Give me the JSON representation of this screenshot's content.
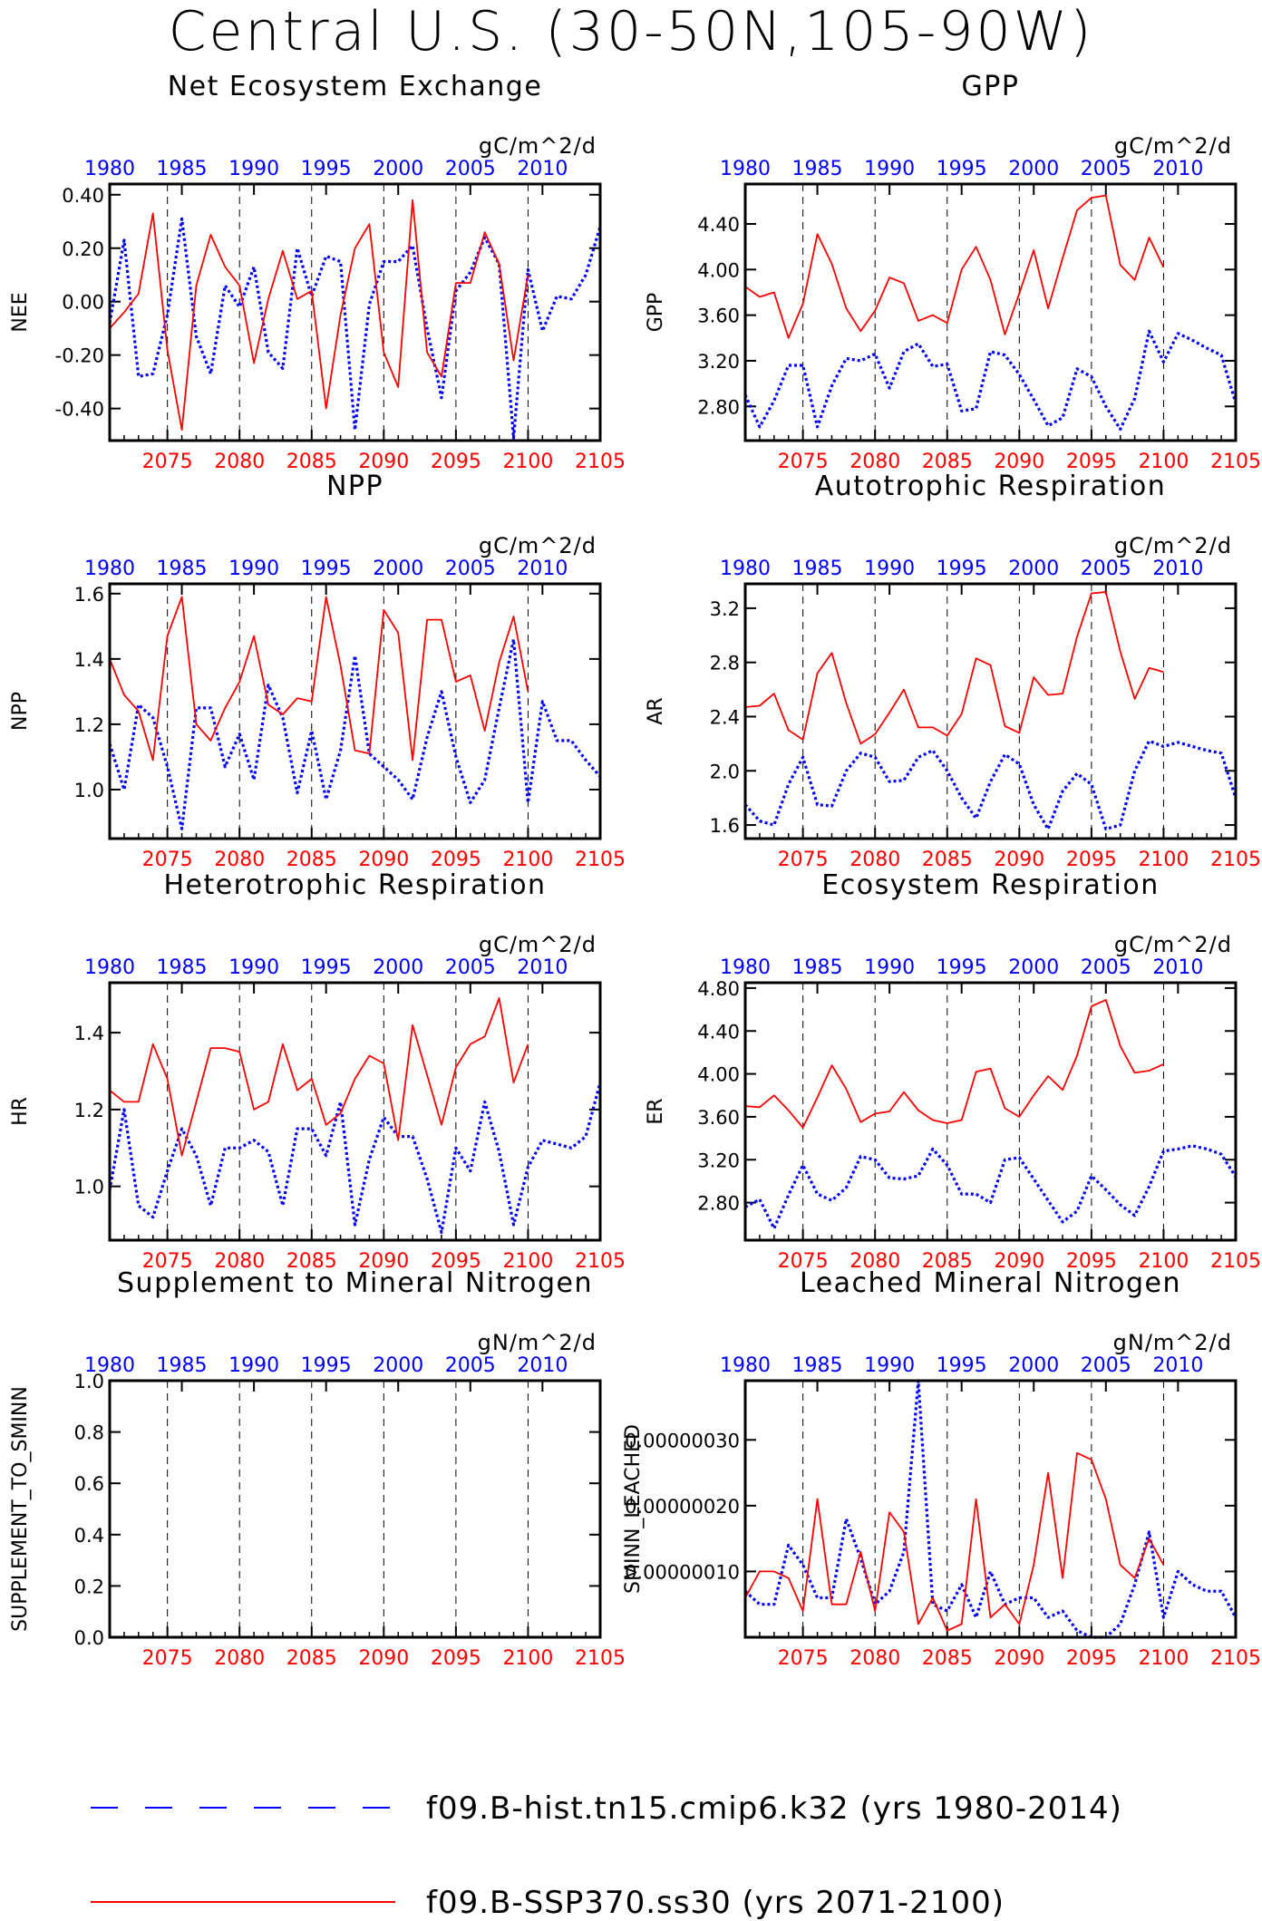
{
  "figure": {
    "title": "Central U.S. (30-50N,105-90W)"
  },
  "legend": {
    "items": [
      {
        "label": "f09.B-hist.tn15.cmip6.k32 (yrs 1980-2014)",
        "color": "#0000ff",
        "style": "dashed"
      },
      {
        "label": "f09.B-SSP370.ss30 (yrs 2071-2100)",
        "color": "#ff0000",
        "style": "solid"
      }
    ]
  },
  "axes_common": {
    "top_ticks": [
      "1980",
      "1985",
      "1990",
      "1995",
      "2000",
      "2005",
      "2010"
    ],
    "top_tick_years": [
      1980,
      1985,
      1990,
      1995,
      2000,
      2005,
      2010
    ],
    "bottom_ticks": [
      "2075",
      "2080",
      "2085",
      "2090",
      "2095",
      "2100",
      "2105"
    ],
    "bottom_tick_years": [
      2075,
      2080,
      2085,
      2090,
      2095,
      2100,
      2105
    ],
    "top_color": "#0000ff",
    "bottom_color": "#ff0000"
  },
  "chart_data": [
    {
      "type": "line",
      "title": "Net Ecosystem Exchange",
      "ylabel": "NEE",
      "units": "gC/m^2/d",
      "ylim": [
        -0.52,
        0.44
      ],
      "yticks": [
        -0.4,
        -0.2,
        0.0,
        0.2,
        0.4
      ],
      "ytick_labels": [
        "-0.40",
        "-0.20",
        "0.00",
        "0.20",
        "0.40"
      ],
      "series": [
        {
          "name": "f09.B-hist.tn15.cmip6.k32 (yrs 1980-2014)",
          "color": "#0000ff",
          "x_start": 1980,
          "values": [
            -0.08,
            0.23,
            -0.28,
            -0.27,
            -0.05,
            0.31,
            -0.13,
            -0.27,
            0.06,
            -0.02,
            0.13,
            -0.19,
            -0.25,
            0.2,
            0.02,
            0.17,
            0.15,
            -0.48,
            -0.01,
            0.15,
            0.15,
            0.21,
            -0.1,
            -0.36,
            0.04,
            0.11,
            0.24,
            0.14,
            -0.51,
            0.12,
            -0.11,
            0.02,
            0.01,
            0.1,
            0.28
          ]
        },
        {
          "name": "f09.B-SSP370.ss30 (yrs 2071-2100)",
          "color": "#ff0000",
          "x_start": 2071,
          "values": [
            -0.1,
            -0.04,
            0.03,
            0.33,
            -0.18,
            -0.48,
            0.06,
            0.25,
            0.13,
            0.06,
            -0.23,
            0.01,
            0.19,
            0.01,
            0.04,
            -0.4,
            -0.05,
            0.2,
            0.29,
            -0.19,
            -0.32,
            0.38,
            -0.19,
            -0.28,
            0.07,
            0.07,
            0.26,
            0.14,
            -0.22,
            0.1
          ]
        }
      ]
    },
    {
      "type": "line",
      "title": "GPP",
      "ylabel": "GPP",
      "units": "gC/m^2/d",
      "ylim": [
        2.5,
        4.75
      ],
      "yticks": [
        2.8,
        3.2,
        3.6,
        4.0,
        4.4
      ],
      "ytick_labels": [
        "2.80",
        "3.20",
        "3.60",
        "4.00",
        "4.40"
      ],
      "series": [
        {
          "name": "f09.B-hist.tn15.cmip6.k32 (yrs 1980-2014)",
          "color": "#0000ff",
          "x_start": 1980,
          "values": [
            2.9,
            2.62,
            2.85,
            3.16,
            3.16,
            2.62,
            2.98,
            3.22,
            3.2,
            3.26,
            2.96,
            3.28,
            3.35,
            3.15,
            3.17,
            2.76,
            2.78,
            3.28,
            3.25,
            3.08,
            2.86,
            2.63,
            2.7,
            3.13,
            3.06,
            2.8,
            2.6,
            2.87,
            3.46,
            3.19,
            3.44,
            3.38,
            3.31,
            3.25,
            2.83
          ]
        },
        {
          "name": "f09.B-SSP370.ss30 (yrs 2071-2100)",
          "color": "#ff0000",
          "x_start": 2071,
          "values": [
            3.85,
            3.76,
            3.8,
            3.4,
            3.7,
            4.31,
            4.05,
            3.66,
            3.46,
            3.64,
            3.93,
            3.88,
            3.55,
            3.6,
            3.53,
            4.0,
            4.2,
            3.91,
            3.43,
            3.79,
            4.17,
            3.66,
            4.1,
            4.52,
            4.63,
            4.65,
            4.04,
            3.91,
            4.28,
            4.02
          ]
        }
      ]
    },
    {
      "type": "line",
      "title": "NPP",
      "ylabel": "NPP",
      "units": "gC/m^2/d",
      "ylim": [
        0.85,
        1.63
      ],
      "yticks": [
        1.0,
        1.2,
        1.4,
        1.6
      ],
      "ytick_labels": [
        "1.0",
        "1.2",
        "1.4",
        "1.6"
      ],
      "series": [
        {
          "name": "f09.B-hist.tn15.cmip6.k32 (yrs 1980-2014)",
          "color": "#0000ff",
          "x_start": 1980,
          "values": [
            1.14,
            1.0,
            1.26,
            1.22,
            1.07,
            0.88,
            1.25,
            1.25,
            1.07,
            1.17,
            1.03,
            1.32,
            1.22,
            0.99,
            1.18,
            0.97,
            1.12,
            1.41,
            1.11,
            1.07,
            1.03,
            0.97,
            1.16,
            1.3,
            1.1,
            0.96,
            1.03,
            1.25,
            1.46,
            0.96,
            1.27,
            1.15,
            1.15,
            1.09,
            1.04
          ]
        },
        {
          "name": "f09.B-SSP370.ss30 (yrs 2071-2100)",
          "color": "#ff0000",
          "x_start": 2071,
          "values": [
            1.4,
            1.29,
            1.24,
            1.09,
            1.47,
            1.59,
            1.2,
            1.15,
            1.25,
            1.33,
            1.47,
            1.26,
            1.23,
            1.28,
            1.27,
            1.59,
            1.38,
            1.12,
            1.11,
            1.55,
            1.48,
            1.09,
            1.52,
            1.52,
            1.33,
            1.35,
            1.18,
            1.39,
            1.53,
            1.3
          ]
        }
      ]
    },
    {
      "type": "line",
      "title": "Autotrophic Respiration",
      "ylabel": "AR",
      "units": "gC/m^2/d",
      "ylim": [
        1.5,
        3.38
      ],
      "yticks": [
        1.6,
        2.0,
        2.4,
        2.8,
        3.2
      ],
      "ytick_labels": [
        "1.6",
        "2.0",
        "2.4",
        "2.8",
        "3.2"
      ],
      "series": [
        {
          "name": "f09.B-hist.tn15.cmip6.k32 (yrs 1980-2014)",
          "color": "#0000ff",
          "x_start": 1980,
          "values": [
            1.75,
            1.63,
            1.6,
            1.9,
            2.1,
            1.75,
            1.74,
            2.0,
            2.13,
            2.1,
            1.92,
            1.93,
            2.1,
            2.15,
            2.0,
            1.8,
            1.65,
            1.92,
            2.12,
            2.05,
            1.75,
            1.57,
            1.85,
            1.98,
            1.9,
            1.57,
            1.6,
            2.0,
            2.22,
            2.18,
            2.21,
            2.18,
            2.15,
            2.13,
            1.8
          ]
        },
        {
          "name": "f09.B-SSP370.ss30 (yrs 2071-2100)",
          "color": "#ff0000",
          "x_start": 2071,
          "values": [
            2.47,
            2.48,
            2.57,
            2.3,
            2.23,
            2.72,
            2.87,
            2.5,
            2.2,
            2.27,
            2.43,
            2.6,
            2.32,
            2.32,
            2.26,
            2.42,
            2.83,
            2.78,
            2.33,
            2.28,
            2.69,
            2.56,
            2.57,
            2.99,
            3.31,
            3.32,
            2.88,
            2.53,
            2.76,
            2.73
          ]
        }
      ]
    },
    {
      "type": "line",
      "title": "Heterotrophic Respiration",
      "ylabel": "HR",
      "units": "gC/m^2/d",
      "ylim": [
        0.86,
        1.53
      ],
      "yticks": [
        1.0,
        1.2,
        1.4
      ],
      "ytick_labels": [
        "1.0",
        "1.2",
        "1.4"
      ],
      "series": [
        {
          "name": "f09.B-hist.tn15.cmip6.k32 (yrs 1980-2014)",
          "color": "#0000ff",
          "x_start": 1980,
          "values": [
            0.99,
            1.2,
            0.95,
            0.92,
            1.04,
            1.15,
            1.08,
            0.95,
            1.1,
            1.1,
            1.12,
            1.09,
            0.95,
            1.15,
            1.15,
            1.08,
            1.22,
            0.9,
            1.07,
            1.18,
            1.13,
            1.13,
            1.02,
            0.88,
            1.1,
            1.04,
            1.22,
            1.09,
            0.9,
            1.05,
            1.12,
            1.11,
            1.1,
            1.13,
            1.27
          ]
        },
        {
          "name": "f09.B-SSP370.ss30 (yrs 2071-2100)",
          "color": "#ff0000",
          "x_start": 2071,
          "values": [
            1.25,
            1.22,
            1.22,
            1.37,
            1.28,
            1.08,
            1.22,
            1.36,
            1.36,
            1.35,
            1.2,
            1.22,
            1.37,
            1.25,
            1.28,
            1.16,
            1.19,
            1.28,
            1.34,
            1.32,
            1.12,
            1.42,
            1.29,
            1.16,
            1.31,
            1.37,
            1.39,
            1.49,
            1.27,
            1.37
          ]
        }
      ]
    },
    {
      "type": "line",
      "title": "Ecosystem Respiration",
      "ylabel": "ER",
      "units": "gC/m^2/d",
      "ylim": [
        2.45,
        4.85
      ],
      "yticks": [
        2.8,
        3.2,
        3.6,
        4.0,
        4.4,
        4.8
      ],
      "ytick_labels": [
        "2.80",
        "3.20",
        "3.60",
        "4.00",
        "4.40",
        "4.80"
      ],
      "series": [
        {
          "name": "f09.B-hist.tn15.cmip6.k32 (yrs 1980-2014)",
          "color": "#0000ff",
          "x_start": 1980,
          "values": [
            2.76,
            2.83,
            2.56,
            2.87,
            3.15,
            2.88,
            2.82,
            2.94,
            3.23,
            3.2,
            3.03,
            3.02,
            3.05,
            3.3,
            3.15,
            2.88,
            2.88,
            2.8,
            3.2,
            3.22,
            3.02,
            2.82,
            2.62,
            2.72,
            3.05,
            2.92,
            2.78,
            2.68,
            2.95,
            3.28,
            3.3,
            3.33,
            3.3,
            3.25,
            3.04
          ]
        },
        {
          "name": "f09.B-SSP370.ss30 (yrs 2071-2100)",
          "color": "#ff0000",
          "x_start": 2071,
          "values": [
            3.7,
            3.69,
            3.8,
            3.66,
            3.5,
            3.78,
            4.08,
            3.86,
            3.55,
            3.63,
            3.65,
            3.83,
            3.66,
            3.57,
            3.54,
            3.57,
            4.02,
            4.05,
            3.68,
            3.6,
            3.8,
            3.98,
            3.85,
            4.17,
            4.63,
            4.69,
            4.26,
            4.01,
            4.03,
            4.09
          ]
        }
      ]
    },
    {
      "type": "line",
      "title": "Supplement to Mineral Nitrogen",
      "ylabel": "SUPPLEMENT_TO_SMINN",
      "units": "gN/m^2/d",
      "ylim": [
        0.0,
        1.0
      ],
      "yticks": [
        0.0,
        0.2,
        0.4,
        0.6,
        0.8,
        1.0
      ],
      "ytick_labels": [
        "0.0",
        "0.2",
        "0.4",
        "0.6",
        "0.8",
        "1.0"
      ],
      "series": []
    },
    {
      "type": "line",
      "title": "Leached Mineral Nitrogen",
      "ylabel": "SMINN_LEACHED",
      "units": "gN/m^2/d",
      "ylim": [
        0.0,
        3.9e-07
      ],
      "yticks": [
        1e-07,
        2e-07,
        3e-07
      ],
      "ytick_labels": [
        "0.00000010",
        "0.00000020",
        "0.00000030"
      ],
      "series": [
        {
          "name": "f09.B-hist.tn15.cmip6.k32 (yrs 1980-2014)",
          "color": "#0000ff",
          "x_start": 1980,
          "values": [
            7e-08,
            5e-08,
            5e-08,
            1.4e-07,
            1.1e-07,
            6e-08,
            6e-08,
            1.8e-07,
            1.2e-07,
            5e-08,
            7e-08,
            1.3e-07,
            3.9e-07,
            5e-08,
            4e-08,
            8e-08,
            3e-08,
            1e-07,
            5e-08,
            6e-08,
            6e-08,
            3e-08,
            4e-08,
            1e-08,
            0.0,
            0.0,
            2e-08,
            8e-08,
            1.6e-07,
            3e-08,
            1e-07,
            8e-08,
            7e-08,
            7e-08,
            3e-08
          ]
        },
        {
          "name": "f09.B-SSP370.ss30 (yrs 2071-2100)",
          "color": "#ff0000",
          "x_start": 2071,
          "values": [
            6e-08,
            1e-07,
            1e-07,
            9e-08,
            4e-08,
            2.1e-07,
            5e-08,
            5e-08,
            1.3e-07,
            4e-08,
            1.9e-07,
            1.6e-07,
            2e-08,
            6e-08,
            1e-08,
            2e-08,
            2.1e-07,
            3e-08,
            5e-08,
            2e-08,
            1.1e-07,
            2.5e-07,
            9e-08,
            2.8e-07,
            2.7e-07,
            2.1e-07,
            1.1e-07,
            9e-08,
            1.5e-07,
            1.1e-07
          ]
        }
      ]
    }
  ]
}
